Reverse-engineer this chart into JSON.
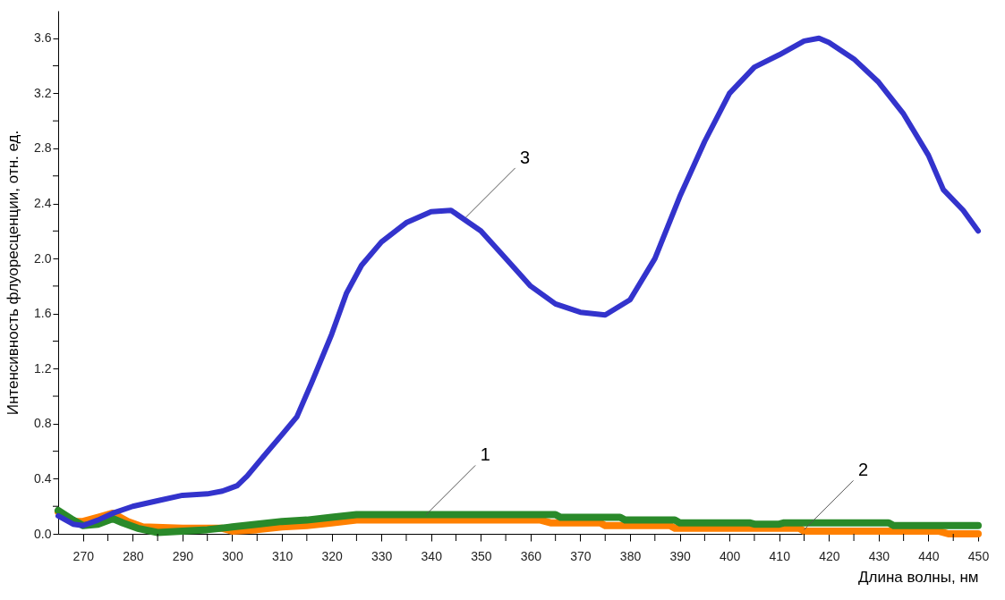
{
  "chart_data": {
    "type": "line",
    "xlabel": "Длина волны, нм",
    "ylabel": "Интенсивность флуоресценции, отн. ед.",
    "xlim": [
      265,
      450
    ],
    "ylim": [
      0,
      3.8
    ],
    "xticks": [
      270,
      {
        "value": 275,
        "label": null
      },
      280,
      {
        "value": 285,
        "label": null
      },
      290,
      {
        "value": 295,
        "label": null
      },
      300,
      {
        "value": 305,
        "label": null
      },
      310,
      {
        "value": 315,
        "label": null
      },
      320,
      {
        "value": 325,
        "label": null
      },
      330,
      {
        "value": 335,
        "label": null
      },
      340,
      {
        "value": 345,
        "label": null
      },
      350,
      {
        "value": 355,
        "label": null
      },
      360,
      {
        "value": 365,
        "label": null
      },
      370,
      {
        "value": 375,
        "label": null
      },
      380,
      {
        "value": 385,
        "label": null
      },
      390,
      {
        "value": 395,
        "label": null
      },
      400,
      {
        "value": 405,
        "label": null
      },
      410,
      {
        "value": 415,
        "label": null
      },
      420,
      {
        "value": 425,
        "label": null
      },
      430,
      {
        "value": 435,
        "label": null
      },
      440,
      {
        "value": 445,
        "label": null
      },
      450
    ],
    "yticks": [
      {
        "value": 0,
        "label": "0.0"
      },
      {
        "value": 0.2,
        "label": null
      },
      {
        "value": 0.4,
        "label": "0.4"
      },
      {
        "value": 0.6,
        "label": null
      },
      {
        "value": 0.8,
        "label": "0.8"
      },
      {
        "value": 1.0,
        "label": null
      },
      {
        "value": 1.2,
        "label": "1.2"
      },
      {
        "value": 1.4,
        "label": null
      },
      {
        "value": 1.6,
        "label": "1.6"
      },
      {
        "value": 1.8,
        "label": null
      },
      {
        "value": 2.0,
        "label": "2.0"
      },
      {
        "value": 2.2,
        "label": null
      },
      {
        "value": 2.4,
        "label": "2.4"
      },
      {
        "value": 2.6,
        "label": null
      },
      {
        "value": 2.8,
        "label": "2.8"
      },
      {
        "value": 3.0,
        "label": null
      },
      {
        "value": 3.2,
        "label": "3.2"
      },
      {
        "value": 3.4,
        "label": null
      },
      {
        "value": 3.6,
        "label": "3.6"
      }
    ],
    "grid": false,
    "series": [
      {
        "color": "#ff8000",
        "x": [
          265,
          268,
          270,
          273,
          276,
          279,
          282,
          290,
          298,
          300,
          305,
          310,
          315,
          320,
          325,
          362,
          364,
          374,
          375,
          388,
          389,
          414,
          415,
          442,
          444,
          450
        ],
        "values": [
          0.16,
          0.09,
          0.09,
          0.12,
          0.15,
          0.09,
          0.05,
          0.04,
          0.04,
          0.02,
          0.03,
          0.05,
          0.06,
          0.08,
          0.1,
          0.1,
          0.08,
          0.08,
          0.06,
          0.06,
          0.04,
          0.04,
          0.02,
          0.02,
          0.0,
          0.0
        ]
      },
      {
        "color": "#2a8a2a",
        "x": [
          265,
          268,
          270,
          273,
          276,
          278,
          281,
          285,
          290,
          295,
          300,
          305,
          310,
          315,
          320,
          325,
          340,
          365,
          366,
          378,
          379,
          389,
          390,
          404,
          405,
          410,
          411,
          432,
          433,
          450
        ],
        "values": [
          0.17,
          0.1,
          0.06,
          0.07,
          0.11,
          0.08,
          0.04,
          0.01,
          0.02,
          0.03,
          0.05,
          0.07,
          0.09,
          0.1,
          0.12,
          0.14,
          0.14,
          0.14,
          0.12,
          0.12,
          0.1,
          0.1,
          0.08,
          0.08,
          0.07,
          0.07,
          0.08,
          0.08,
          0.06,
          0.06
        ]
      },
      {
        "color": "#3333cc",
        "x": [
          265,
          268,
          270,
          273,
          276,
          280,
          285,
          290,
          295,
          298,
          301,
          303,
          306,
          310,
          313,
          316,
          320,
          323,
          326,
          330,
          335,
          340,
          344,
          350,
          355,
          360,
          365,
          370,
          375,
          380,
          385,
          390,
          395,
          400,
          405,
          410,
          415,
          418,
          420,
          425,
          430,
          435,
          440,
          443,
          447,
          450
        ],
        "values": [
          0.13,
          0.07,
          0.06,
          0.1,
          0.15,
          0.2,
          0.24,
          0.28,
          0.29,
          0.31,
          0.35,
          0.42,
          0.55,
          0.72,
          0.85,
          1.1,
          1.45,
          1.75,
          1.95,
          2.12,
          2.26,
          2.34,
          2.35,
          2.2,
          2.0,
          1.8,
          1.67,
          1.61,
          1.59,
          1.7,
          2.0,
          2.45,
          2.85,
          3.2,
          3.39,
          3.48,
          3.58,
          3.6,
          3.57,
          3.45,
          3.28,
          3.05,
          2.75,
          2.5,
          2.35,
          2.2
        ]
      }
    ],
    "annotations": [
      {
        "text": "1",
        "x": 339,
        "y": 0.14
      },
      {
        "text": "2",
        "x": 415,
        "y": 0.03
      },
      {
        "text": "3",
        "x": 347,
        "y": 2.3
      }
    ]
  }
}
